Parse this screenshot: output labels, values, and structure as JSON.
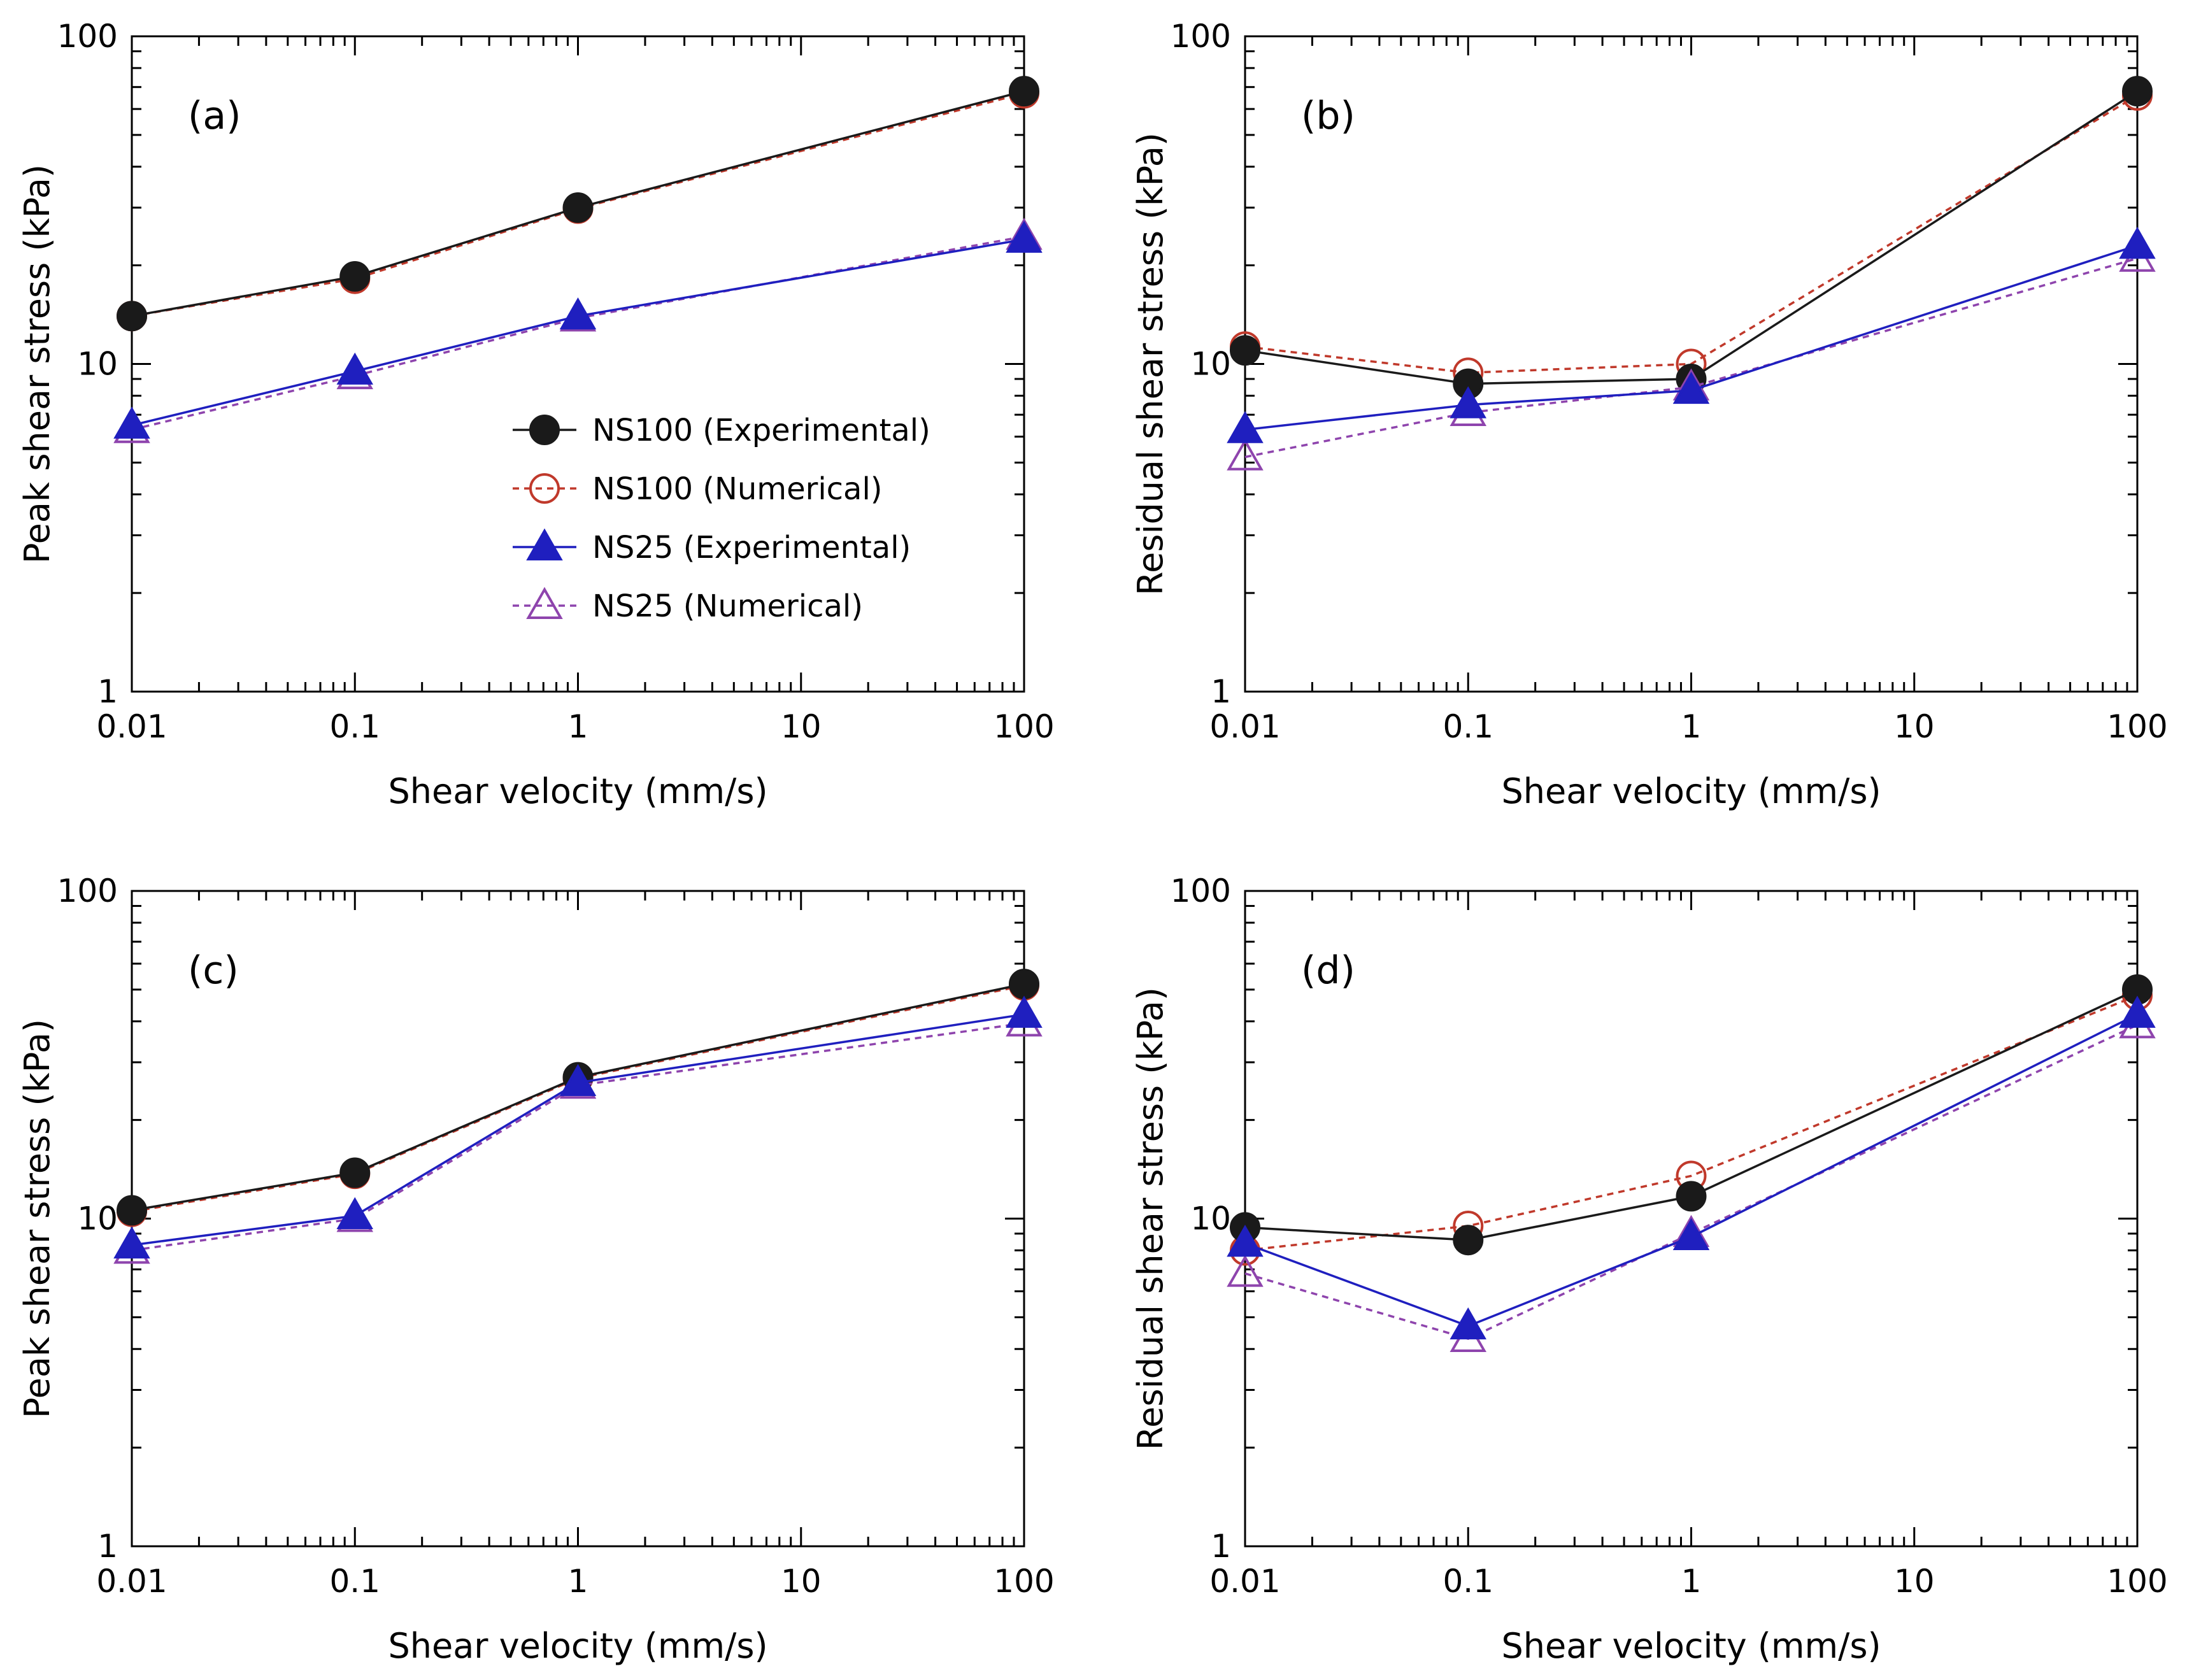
{
  "chart_data": [
    {
      "id": "a",
      "type": "line",
      "panel_label": "(a)",
      "xlabel": "Shear velocity (mm/s)",
      "ylabel": "Peak shear stress (kPa)",
      "xscale": "log",
      "yscale": "log",
      "xlim": [
        0.01,
        100
      ],
      "ylim": [
        1,
        100
      ],
      "x_tick_labels": [
        "0.01",
        "0.1",
        "1",
        "10",
        "100"
      ],
      "y_tick_labels": [
        "1",
        "10",
        "100"
      ],
      "x": [
        0.01,
        0.1,
        1,
        100
      ],
      "legend": "center-left",
      "series": [
        {
          "name": "NS100 (Experimental)",
          "values": [
            14.0,
            18.5,
            30.0,
            68.0
          ]
        },
        {
          "name": "NS100 (Numerical)",
          "values": [
            14.0,
            18.2,
            29.8,
            67.0
          ]
        },
        {
          "name": "NS25 (Experimental)",
          "values": [
            6.5,
            9.5,
            14.0,
            24.0
          ]
        },
        {
          "name": "NS25 (Numerical)",
          "values": [
            6.3,
            9.2,
            13.8,
            24.5
          ]
        }
      ]
    },
    {
      "id": "b",
      "type": "line",
      "panel_label": "(b)",
      "xlabel": "Shear velocity (mm/s)",
      "ylabel": "Residual shear stress (kPa)",
      "xscale": "log",
      "yscale": "log",
      "xlim": [
        0.01,
        100
      ],
      "ylim": [
        1,
        100
      ],
      "x_tick_labels": [
        "0.01",
        "0.1",
        "1",
        "10",
        "100"
      ],
      "y_tick_labels": [
        "1",
        "10",
        "100"
      ],
      "x": [
        0.01,
        0.1,
        1,
        100
      ],
      "series": [
        {
          "name": "NS100 (Experimental)",
          "values": [
            11.0,
            8.7,
            9.0,
            68.0
          ]
        },
        {
          "name": "NS100 (Numerical)",
          "values": [
            11.3,
            9.4,
            10.0,
            66.0
          ]
        },
        {
          "name": "NS25 (Experimental)",
          "values": [
            6.3,
            7.5,
            8.3,
            23.0
          ]
        },
        {
          "name": "NS25 (Numerical)",
          "values": [
            5.2,
            7.1,
            8.5,
            21.0
          ]
        }
      ]
    },
    {
      "id": "c",
      "type": "line",
      "panel_label": "(c)",
      "xlabel": "Shear velocity (mm/s)",
      "ylabel": "Peak shear stress (kPa)",
      "xscale": "log",
      "yscale": "log",
      "xlim": [
        0.01,
        100
      ],
      "ylim": [
        1,
        100
      ],
      "x_tick_labels": [
        "0.01",
        "0.1",
        "1",
        "10",
        "100"
      ],
      "y_tick_labels": [
        "1",
        "10",
        "100"
      ],
      "x": [
        0.01,
        0.1,
        1,
        100
      ],
      "series": [
        {
          "name": "NS100 (Experimental)",
          "values": [
            10.6,
            13.8,
            27.0,
            52.0
          ]
        },
        {
          "name": "NS100 (Numerical)",
          "values": [
            10.5,
            13.7,
            26.8,
            51.5
          ]
        },
        {
          "name": "NS25 (Experimental)",
          "values": [
            8.3,
            10.2,
            26.0,
            42.0
          ]
        },
        {
          "name": "NS25 (Numerical)",
          "values": [
            8.0,
            10.0,
            25.5,
            39.5
          ]
        }
      ]
    },
    {
      "id": "d",
      "type": "line",
      "panel_label": "(d)",
      "xlabel": "Shear velocity (mm/s)",
      "ylabel": "Residual shear stress (kPa)",
      "xscale": "log",
      "yscale": "log",
      "xlim": [
        0.01,
        100
      ],
      "ylim": [
        1,
        100
      ],
      "x_tick_labels": [
        "0.01",
        "0.1",
        "1",
        "10",
        "100"
      ],
      "y_tick_labels": [
        "1",
        "10",
        "100"
      ],
      "x": [
        0.01,
        0.1,
        1,
        100
      ],
      "series": [
        {
          "name": "NS100 (Experimental)",
          "values": [
            9.4,
            8.6,
            11.7,
            50.0
          ]
        },
        {
          "name": "NS100 (Numerical)",
          "values": [
            8.0,
            9.5,
            13.5,
            48.0
          ]
        },
        {
          "name": "NS25 (Experimental)",
          "values": [
            8.4,
            4.7,
            8.8,
            42.0
          ]
        },
        {
          "name": "NS25 (Numerical)",
          "values": [
            6.8,
            4.3,
            9.0,
            39.0
          ]
        }
      ]
    }
  ],
  "series_styles": [
    {
      "name": "NS100 (Experimental)",
      "color": "#1a1a1a",
      "marker": "circle",
      "filled": true,
      "dashed": false
    },
    {
      "name": "NS100 (Numerical)",
      "color": "#c0392b",
      "marker": "circle",
      "filled": false,
      "dashed": true
    },
    {
      "name": "NS25 (Experimental)",
      "color": "#1f1fbf",
      "marker": "triangle",
      "filled": true,
      "dashed": false
    },
    {
      "name": "NS25 (Numerical)",
      "color": "#8e44ad",
      "marker": "triangle",
      "filled": false,
      "dashed": true
    }
  ]
}
